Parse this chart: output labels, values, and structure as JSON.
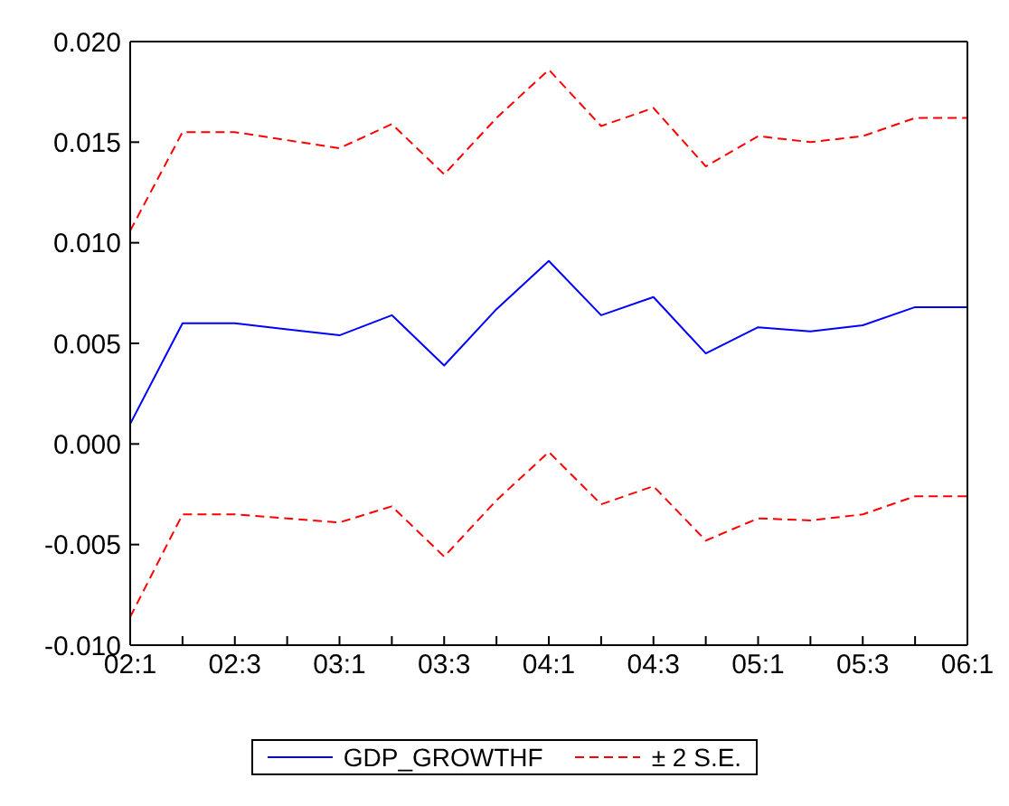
{
  "chart_data": {
    "type": "line",
    "categories": [
      "02:1",
      null,
      "02:3",
      null,
      "03:1",
      null,
      "03:3",
      null,
      "04:1",
      null,
      "04:3",
      null,
      "05:1",
      null,
      "05:3",
      null,
      "06:1"
    ],
    "series": [
      {
        "name": "GDP_GROWTHF",
        "color": "#0000ff",
        "line_style": "solid",
        "values": [
          0.001,
          0.006,
          0.006,
          0.0057,
          0.0054,
          0.0064,
          0.0039,
          0.0067,
          0.0091,
          0.0064,
          0.0073,
          0.0045,
          0.0058,
          0.0056,
          0.0059,
          0.0068,
          0.0068
        ]
      },
      {
        "name": "± 2 S.E.",
        "color": "#ff0000",
        "line_style": "dashed",
        "values": [
          0.0106,
          0.0155,
          0.0155,
          0.0151,
          0.0147,
          0.0159,
          0.0134,
          0.0162,
          0.0186,
          0.0158,
          0.0167,
          0.0138,
          0.0153,
          0.015,
          0.0153,
          0.0162,
          0.0162
        ]
      },
      {
        "color": "#ff0000",
        "line_style": "dashed",
        "values": [
          -0.0086,
          -0.0035,
          -0.0035,
          -0.0037,
          -0.0039,
          -0.0031,
          -0.0056,
          -0.0028,
          -0.0004,
          -0.003,
          -0.0021,
          -0.0048,
          -0.0037,
          -0.0038,
          -0.0035,
          -0.0026,
          -0.0026
        ]
      }
    ],
    "ylim": [
      -0.01,
      0.02
    ],
    "yticks": [
      {
        "value": -0.01,
        "label": "-0.010"
      },
      {
        "value": -0.005,
        "label": "-0.005"
      },
      {
        "value": 0,
        "label": "0.000"
      },
      {
        "value": 0.005,
        "label": "0.005"
      },
      {
        "value": 0.01,
        "label": "0.010"
      },
      {
        "value": 0.015,
        "label": "0.015"
      },
      {
        "value": 0.02,
        "label": "0.020"
      }
    ],
    "legend": "bottom",
    "grid": false,
    "marker": "none"
  }
}
